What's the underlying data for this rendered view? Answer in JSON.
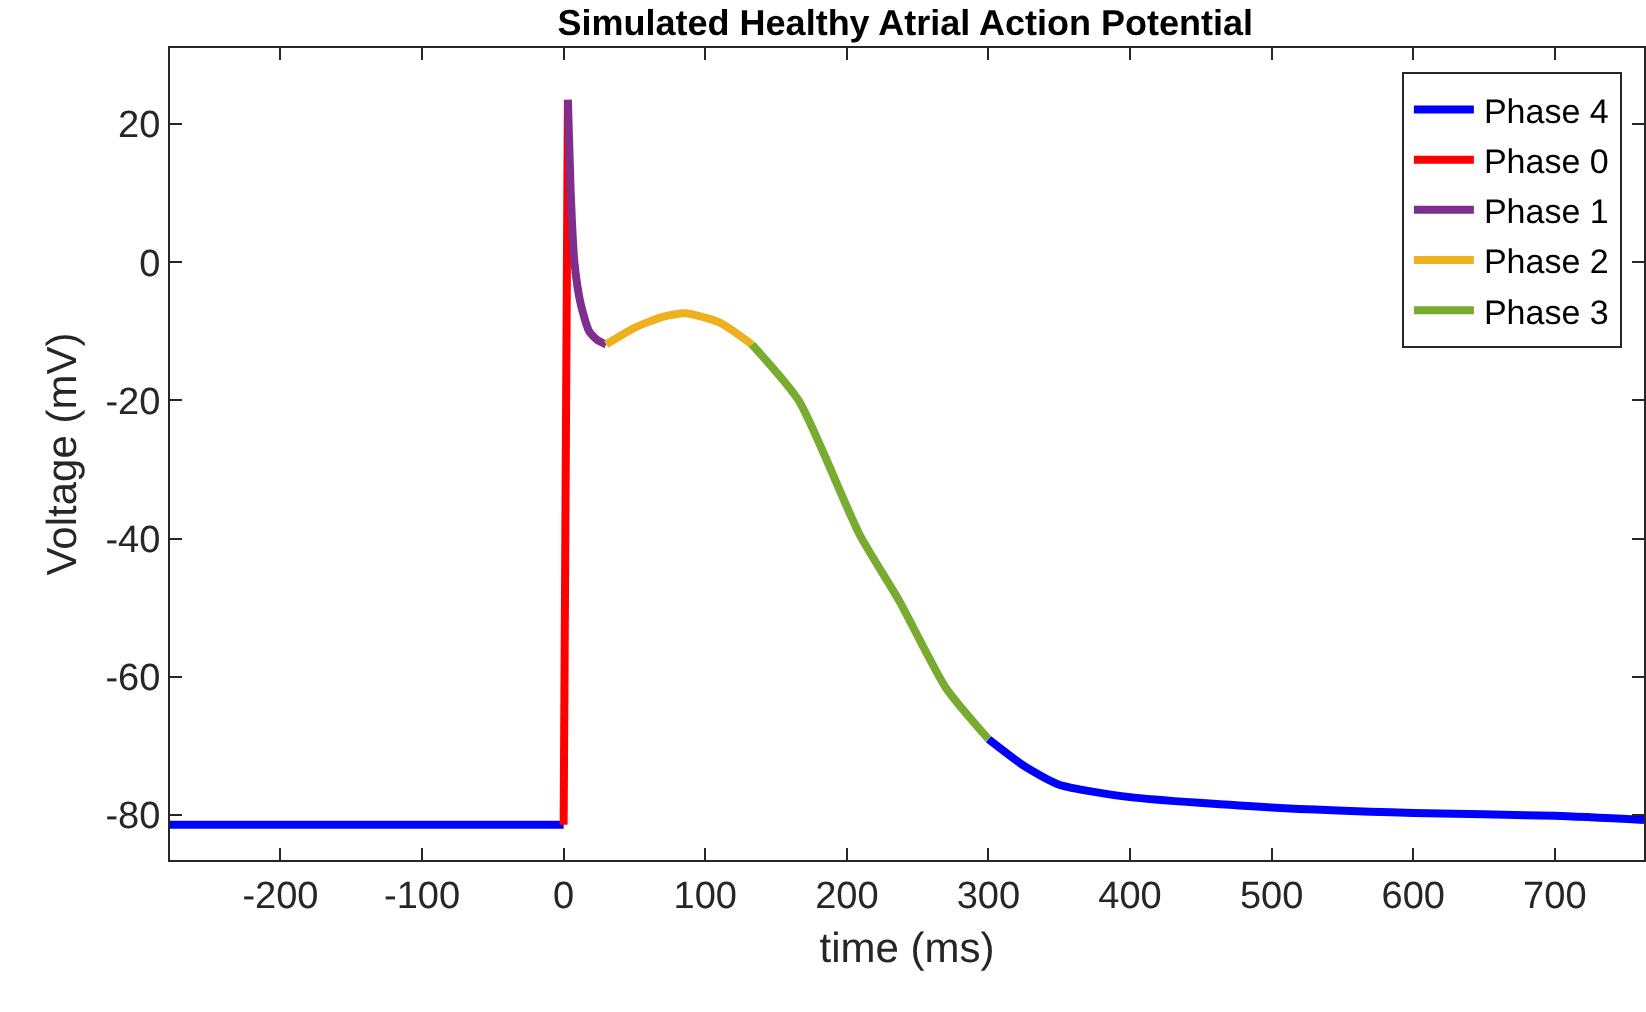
{
  "chart_data": {
    "type": "line",
    "title": "Simulated Healthy Atrial Action Potential",
    "xlabel": "time (ms)",
    "ylabel": "Voltage (mV)",
    "xlim": [
      -278,
      763
    ],
    "ylim": [
      -86.5,
      31
    ],
    "xticks": [
      -200,
      -100,
      0,
      100,
      200,
      300,
      400,
      500,
      600,
      700
    ],
    "yticks": [
      -80,
      -60,
      -40,
      -20,
      0,
      20
    ],
    "legend": "top right",
    "marker": "none",
    "line_style": "solid",
    "series": [
      {
        "name": "Phase 4",
        "color": "#0000ff",
        "x": [
          -278,
          0,
          null,
          300,
          326,
          350,
          400,
          500,
          600,
          700,
          763
        ],
        "values": [
          -81.4,
          -81.4,
          null,
          -69,
          -73,
          -75.6,
          -77.4,
          -78.9,
          -79.7,
          -80.1,
          -80.7
        ]
      },
      {
        "name": "Phase 0",
        "color": "#ff0000",
        "x": [
          0,
          3
        ],
        "values": [
          -81.4,
          23.5
        ]
      },
      {
        "name": "Phase 1",
        "color": "#7e2f8e",
        "x": [
          3,
          5,
          7.6,
          12,
          18,
          24,
          30
        ],
        "values": [
          23.5,
          10,
          0,
          -6,
          -10,
          -11.3,
          -11.9
        ]
      },
      {
        "name": "Phase 2",
        "color": "#edb120",
        "x": [
          30,
          50,
          70,
          86,
          110,
          133
        ],
        "values": [
          -11.9,
          -9.5,
          -7.9,
          -7.4,
          -8.7,
          -11.9
        ]
      },
      {
        "name": "Phase 3",
        "color": "#77ac30",
        "x": [
          133,
          166,
          209,
          237,
          270,
          300
        ],
        "values": [
          -11.9,
          -20,
          -39.4,
          -49,
          -61.6,
          -69
        ]
      }
    ]
  }
}
